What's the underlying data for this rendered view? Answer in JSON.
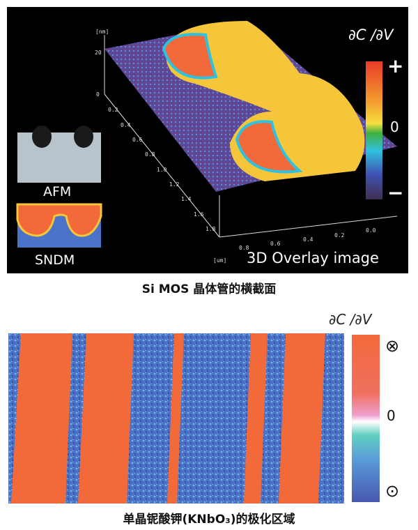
{
  "top_panel": {
    "colorbar_title": "∂C /∂V",
    "colorbar_labels": {
      "plus": "+",
      "zero": "0",
      "minus": "−"
    },
    "inset_afm_label": "AFM",
    "inset_sndm_label": "SNDM",
    "overlay_label": "3D Overlay image",
    "z_axis": {
      "unit": "[nm]",
      "ticks": [
        "20",
        "0"
      ]
    },
    "y_axis": {
      "ticks": [
        "0.2",
        "0.4",
        "0.6",
        "0.8",
        "1.0",
        "1.2",
        "1.4",
        "1.6",
        "1.8"
      ]
    },
    "x_axis": {
      "unit": "[um]",
      "ticks": [
        "0.8",
        "0.6",
        "0.4",
        "0.2",
        "0.0"
      ]
    },
    "caption": "Si MOS 晶体管的横截面"
  },
  "bottom_panel": {
    "colorbar_title": "∂C /∂V",
    "colorbar_labels": {
      "top": "⊗",
      "zero": "0",
      "bottom": "⊙"
    },
    "caption": "单晶铌酸钾(KNbO₃)的极化区域"
  },
  "colors": {
    "orange": "#f26a3a",
    "blue": "#4b74c8",
    "yellow": "#f5c63a",
    "purple": "#5a4a9a"
  }
}
